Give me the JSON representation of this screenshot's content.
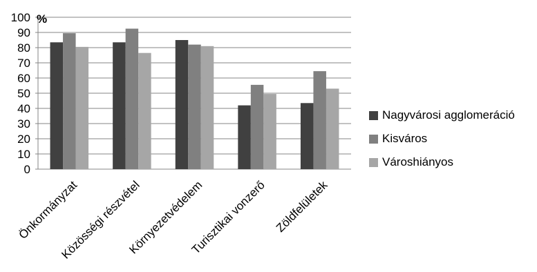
{
  "chart_data": {
    "type": "bar",
    "title": "",
    "xlabel": "",
    "ylabel": "%",
    "ylim": [
      0,
      100
    ],
    "yticks": [
      0,
      10,
      20,
      30,
      40,
      50,
      60,
      70,
      80,
      90,
      100
    ],
    "grid": true,
    "legend_position": "right",
    "categories": [
      "Önkormányzat",
      "Közösségi részvétel",
      "Környezetvédelem",
      "Turisztikai vonzerő",
      "Zöldfelületek"
    ],
    "series": [
      {
        "name": "Nagyvárosi agglomeráció",
        "color": "#404040",
        "values": [
          83.5,
          83.5,
          85,
          42,
          43.5
        ]
      },
      {
        "name": "Kisváros",
        "color": "#808080",
        "values": [
          89.5,
          92.5,
          82,
          55.5,
          64.5
        ]
      },
      {
        "name": "Városhiányos",
        "color": "#a6a6a6",
        "values": [
          80.5,
          76.5,
          81,
          49.5,
          53
        ]
      }
    ]
  }
}
